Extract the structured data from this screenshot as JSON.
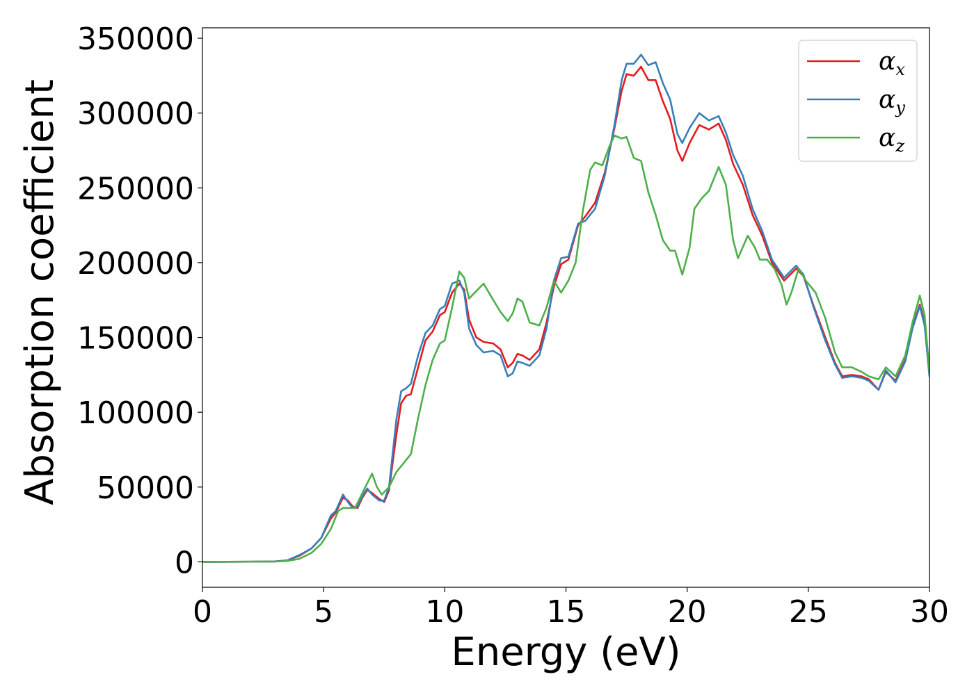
{
  "chart_data": {
    "type": "line",
    "xlabel": "Energy (eV)",
    "ylabel": "Absorption coefficient",
    "xlim": [
      0,
      30
    ],
    "ylim": [
      -17000,
      357000
    ],
    "xticks": [
      0,
      5,
      10,
      15,
      20,
      25,
      30
    ],
    "yticks": [
      0,
      50000,
      100000,
      150000,
      200000,
      250000,
      300000,
      350000
    ],
    "xtick_labels": [
      "0",
      "5",
      "10",
      "15",
      "20",
      "25",
      "30"
    ],
    "ytick_labels": [
      "0",
      "50000",
      "100000",
      "150000",
      "200000",
      "250000",
      "300000",
      "350000"
    ],
    "grid": false,
    "legend_position": "top-right",
    "series": [
      {
        "name": "αx",
        "legend_base": "α",
        "legend_sub": "x",
        "color": "#e41a1c",
        "points": [
          [
            0,
            0
          ],
          [
            2,
            100
          ],
          [
            3,
            300
          ],
          [
            3.5,
            1000
          ],
          [
            4,
            4000
          ],
          [
            4.5,
            9000
          ],
          [
            4.9,
            16000
          ],
          [
            5.3,
            29000
          ],
          [
            5.5,
            33000
          ],
          [
            5.8,
            43000
          ],
          [
            6,
            41000
          ],
          [
            6.2,
            37000
          ],
          [
            6.4,
            36000
          ],
          [
            6.6,
            43000
          ],
          [
            6.8,
            48000
          ],
          [
            7,
            46000
          ],
          [
            7.3,
            42000
          ],
          [
            7.5,
            40000
          ],
          [
            7.7,
            48000
          ],
          [
            8,
            85000
          ],
          [
            8.2,
            106000
          ],
          [
            8.4,
            111000
          ],
          [
            8.6,
            112000
          ],
          [
            8.9,
            130000
          ],
          [
            9.2,
            148000
          ],
          [
            9.5,
            154000
          ],
          [
            9.8,
            165000
          ],
          [
            10.0,
            167000
          ],
          [
            10.3,
            180000
          ],
          [
            10.6,
            186000
          ],
          [
            10.8,
            182000
          ],
          [
            11.0,
            162000
          ],
          [
            11.3,
            150000
          ],
          [
            11.6,
            147000
          ],
          [
            12.0,
            146000
          ],
          [
            12.3,
            142000
          ],
          [
            12.6,
            130000
          ],
          [
            12.8,
            133000
          ],
          [
            13.0,
            139000
          ],
          [
            13.2,
            138000
          ],
          [
            13.5,
            135000
          ],
          [
            13.9,
            142000
          ],
          [
            14.2,
            160000
          ],
          [
            14.5,
            184000
          ],
          [
            14.8,
            199000
          ],
          [
            15.1,
            202000
          ],
          [
            15.5,
            225000
          ],
          [
            15.8,
            231000
          ],
          [
            16.2,
            240000
          ],
          [
            16.6,
            260000
          ],
          [
            17.0,
            290000
          ],
          [
            17.3,
            315000
          ],
          [
            17.5,
            326000
          ],
          [
            17.8,
            325000
          ],
          [
            18.1,
            331000
          ],
          [
            18.4,
            322000
          ],
          [
            18.7,
            322000
          ],
          [
            19.0,
            308000
          ],
          [
            19.3,
            296000
          ],
          [
            19.6,
            275000
          ],
          [
            19.8,
            268000
          ],
          [
            20.1,
            280000
          ],
          [
            20.5,
            292000
          ],
          [
            20.9,
            289000
          ],
          [
            21.3,
            293000
          ],
          [
            21.6,
            282000
          ],
          [
            21.9,
            266000
          ],
          [
            22.3,
            252000
          ],
          [
            22.7,
            232000
          ],
          [
            23.1,
            218000
          ],
          [
            23.5,
            200000
          ],
          [
            24.0,
            188000
          ],
          [
            24.5,
            196000
          ],
          [
            24.8,
            191000
          ],
          [
            25.2,
            172000
          ],
          [
            25.7,
            150000
          ],
          [
            26.1,
            133000
          ],
          [
            26.4,
            124000
          ],
          [
            26.8,
            125000
          ],
          [
            27.2,
            124000
          ],
          [
            27.5,
            122000
          ],
          [
            27.9,
            115000
          ],
          [
            28.2,
            127000
          ],
          [
            28.6,
            121000
          ],
          [
            29.0,
            135000
          ],
          [
            29.3,
            157000
          ],
          [
            29.6,
            172000
          ],
          [
            29.8,
            160000
          ],
          [
            30.0,
            126000
          ]
        ]
      },
      {
        "name": "αy",
        "legend_base": "α",
        "legend_sub": "y",
        "color": "#377eb8",
        "points": [
          [
            0,
            0
          ],
          [
            2,
            100
          ],
          [
            3,
            300
          ],
          [
            3.5,
            1000
          ],
          [
            4,
            4500
          ],
          [
            4.5,
            9000
          ],
          [
            4.9,
            16000
          ],
          [
            5.3,
            31000
          ],
          [
            5.5,
            34000
          ],
          [
            5.8,
            45000
          ],
          [
            6,
            40000
          ],
          [
            6.2,
            36000
          ],
          [
            6.4,
            37000
          ],
          [
            6.6,
            44000
          ],
          [
            6.8,
            49000
          ],
          [
            7,
            45000
          ],
          [
            7.3,
            41000
          ],
          [
            7.5,
            41000
          ],
          [
            7.7,
            50000
          ],
          [
            8,
            95000
          ],
          [
            8.2,
            114000
          ],
          [
            8.4,
            116000
          ],
          [
            8.6,
            119000
          ],
          [
            8.9,
            138000
          ],
          [
            9.2,
            153000
          ],
          [
            9.5,
            158000
          ],
          [
            9.8,
            169000
          ],
          [
            10.0,
            171000
          ],
          [
            10.3,
            186000
          ],
          [
            10.6,
            188000
          ],
          [
            10.8,
            180000
          ],
          [
            11.0,
            156000
          ],
          [
            11.3,
            145000
          ],
          [
            11.6,
            140000
          ],
          [
            12.0,
            141000
          ],
          [
            12.3,
            138000
          ],
          [
            12.6,
            124000
          ],
          [
            12.8,
            126000
          ],
          [
            13.0,
            134000
          ],
          [
            13.2,
            133000
          ],
          [
            13.5,
            131000
          ],
          [
            13.9,
            138000
          ],
          [
            14.2,
            156000
          ],
          [
            14.5,
            188000
          ],
          [
            14.8,
            203000
          ],
          [
            15.1,
            204000
          ],
          [
            15.5,
            226000
          ],
          [
            15.8,
            228000
          ],
          [
            16.2,
            236000
          ],
          [
            16.6,
            258000
          ],
          [
            17.0,
            292000
          ],
          [
            17.3,
            322000
          ],
          [
            17.5,
            333000
          ],
          [
            17.8,
            333000
          ],
          [
            18.1,
            339000
          ],
          [
            18.4,
            332000
          ],
          [
            18.7,
            334000
          ],
          [
            19.0,
            320000
          ],
          [
            19.3,
            309000
          ],
          [
            19.6,
            286000
          ],
          [
            19.8,
            280000
          ],
          [
            20.1,
            290000
          ],
          [
            20.5,
            300000
          ],
          [
            20.9,
            295000
          ],
          [
            21.3,
            298000
          ],
          [
            21.6,
            287000
          ],
          [
            21.9,
            272000
          ],
          [
            22.3,
            258000
          ],
          [
            22.7,
            236000
          ],
          [
            23.1,
            221000
          ],
          [
            23.5,
            202000
          ],
          [
            24.0,
            190000
          ],
          [
            24.5,
            198000
          ],
          [
            24.8,
            192000
          ],
          [
            25.2,
            171000
          ],
          [
            25.7,
            148000
          ],
          [
            26.1,
            132000
          ],
          [
            26.4,
            123000
          ],
          [
            26.8,
            124000
          ],
          [
            27.2,
            123000
          ],
          [
            27.5,
            121000
          ],
          [
            27.9,
            115000
          ],
          [
            28.2,
            128000
          ],
          [
            28.6,
            120000
          ],
          [
            29.0,
            134000
          ],
          [
            29.3,
            156000
          ],
          [
            29.6,
            171000
          ],
          [
            29.8,
            158000
          ],
          [
            30.0,
            124000
          ]
        ]
      },
      {
        "name": "αz",
        "legend_base": "α",
        "legend_sub": "z",
        "color": "#4daf4a",
        "points": [
          [
            0,
            0
          ],
          [
            2,
            100
          ],
          [
            3,
            200
          ],
          [
            3.5,
            600
          ],
          [
            4,
            2000
          ],
          [
            4.5,
            6000
          ],
          [
            4.9,
            12000
          ],
          [
            5.3,
            22000
          ],
          [
            5.6,
            34000
          ],
          [
            5.8,
            36000
          ],
          [
            6,
            36000
          ],
          [
            6.3,
            36000
          ],
          [
            6.6,
            46000
          ],
          [
            7.0,
            59000
          ],
          [
            7.2,
            50000
          ],
          [
            7.4,
            45000
          ],
          [
            7.7,
            50000
          ],
          [
            8.0,
            60000
          ],
          [
            8.3,
            66000
          ],
          [
            8.6,
            72000
          ],
          [
            8.9,
            96000
          ],
          [
            9.2,
            118000
          ],
          [
            9.5,
            135000
          ],
          [
            9.8,
            146000
          ],
          [
            10.0,
            148000
          ],
          [
            10.3,
            170000
          ],
          [
            10.6,
            194000
          ],
          [
            10.8,
            190000
          ],
          [
            11.0,
            176000
          ],
          [
            11.3,
            181000
          ],
          [
            11.6,
            186000
          ],
          [
            12.0,
            175000
          ],
          [
            12.3,
            167000
          ],
          [
            12.6,
            161000
          ],
          [
            12.8,
            166000
          ],
          [
            13.0,
            176000
          ],
          [
            13.2,
            174000
          ],
          [
            13.5,
            160000
          ],
          [
            13.9,
            158000
          ],
          [
            14.2,
            170000
          ],
          [
            14.5,
            188000
          ],
          [
            14.8,
            180000
          ],
          [
            15.1,
            188000
          ],
          [
            15.4,
            200000
          ],
          [
            15.7,
            235000
          ],
          [
            16.0,
            262000
          ],
          [
            16.2,
            267000
          ],
          [
            16.5,
            265000
          ],
          [
            16.8,
            278000
          ],
          [
            17.0,
            285000
          ],
          [
            17.3,
            283000
          ],
          [
            17.5,
            284000
          ],
          [
            17.8,
            270000
          ],
          [
            18.1,
            268000
          ],
          [
            18.4,
            247000
          ],
          [
            18.7,
            232000
          ],
          [
            19.0,
            215000
          ],
          [
            19.3,
            208000
          ],
          [
            19.5,
            208000
          ],
          [
            19.8,
            192000
          ],
          [
            20.1,
            210000
          ],
          [
            20.3,
            236000
          ],
          [
            20.6,
            243000
          ],
          [
            20.9,
            248000
          ],
          [
            21.3,
            264000
          ],
          [
            21.6,
            252000
          ],
          [
            21.9,
            215000
          ],
          [
            22.1,
            203000
          ],
          [
            22.5,
            218000
          ],
          [
            22.8,
            210000
          ],
          [
            23.0,
            202000
          ],
          [
            23.3,
            202000
          ],
          [
            23.6,
            196000
          ],
          [
            23.9,
            185000
          ],
          [
            24.1,
            172000
          ],
          [
            24.3,
            180000
          ],
          [
            24.6,
            196000
          ],
          [
            24.9,
            188000
          ],
          [
            25.3,
            180000
          ],
          [
            25.7,
            163000
          ],
          [
            26.1,
            140000
          ],
          [
            26.4,
            130000
          ],
          [
            26.8,
            130000
          ],
          [
            27.2,
            127000
          ],
          [
            27.5,
            124000
          ],
          [
            27.9,
            122000
          ],
          [
            28.2,
            130000
          ],
          [
            28.6,
            124000
          ],
          [
            29.0,
            138000
          ],
          [
            29.3,
            160000
          ],
          [
            29.6,
            178000
          ],
          [
            29.8,
            165000
          ],
          [
            30.0,
            127000
          ]
        ]
      }
    ]
  }
}
